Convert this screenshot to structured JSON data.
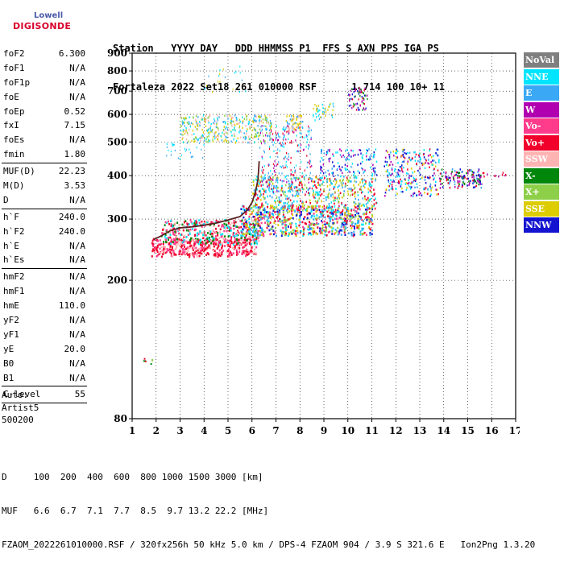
{
  "logo": {
    "line1": "Lowell",
    "line2": "DIGISONDE"
  },
  "header": {
    "labels": [
      "Station",
      "YYYY",
      "DAY",
      "DDD",
      "HHMMSS",
      "P1",
      "FFS",
      "S",
      "AXN",
      "PPS",
      "IGA",
      "PS"
    ],
    "values": [
      "Fortaleza",
      "2022",
      "Set18",
      "261",
      "010000",
      "RSF",
      "",
      "1",
      "714",
      "100",
      "10+",
      "11"
    ]
  },
  "params": {
    "groups": [
      [
        {
          "name": "foF2",
          "value": "6.300"
        },
        {
          "name": "foF1",
          "value": "N/A"
        },
        {
          "name": "foF1p",
          "value": "N/A"
        },
        {
          "name": "foE",
          "value": "N/A"
        },
        {
          "name": "foEp",
          "value": "0.52"
        },
        {
          "name": "fxI",
          "value": "7.15"
        },
        {
          "name": "foEs",
          "value": "N/A"
        },
        {
          "name": "fmin",
          "value": "1.80"
        }
      ],
      [
        {
          "name": "MUF(D)",
          "value": "22.23"
        },
        {
          "name": "M(D)",
          "value": "3.53"
        },
        {
          "name": "D",
          "value": "N/A"
        }
      ],
      [
        {
          "name": "h`F",
          "value": "240.0"
        },
        {
          "name": "h`F2",
          "value": "240.0"
        },
        {
          "name": "h`E",
          "value": "N/A"
        },
        {
          "name": "h`Es",
          "value": "N/A"
        }
      ],
      [
        {
          "name": "hmF2",
          "value": "N/A"
        },
        {
          "name": "hmF1",
          "value": "N/A"
        },
        {
          "name": "hmE",
          "value": "110.0"
        },
        {
          "name": "yF2",
          "value": "N/A"
        },
        {
          "name": "yF1",
          "value": "N/A"
        },
        {
          "name": "yE",
          "value": "20.0"
        },
        {
          "name": "B0",
          "value": "N/A"
        },
        {
          "name": "B1",
          "value": "N/A"
        }
      ],
      [
        {
          "name": "C-level",
          "value": "55"
        }
      ]
    ]
  },
  "auto": {
    "line1": "Auto:",
    "line2": "Artist5",
    "line3": "500200"
  },
  "legend": [
    {
      "label": "NoVal",
      "color": "#7f7f7f"
    },
    {
      "label": "NNE",
      "color": "#00e5ff"
    },
    {
      "label": "E",
      "color": "#3ba8f5"
    },
    {
      "label": "W",
      "color": "#b000b0"
    },
    {
      "label": "Vo-",
      "color": "#ff3c8c"
    },
    {
      "label": "Vo+",
      "color": "#f0002a"
    },
    {
      "label": "SSW",
      "color": "#ffb4b4"
    },
    {
      "label": "X-",
      "color": "#00860a"
    },
    {
      "label": "X+",
      "color": "#8ecf4a"
    },
    {
      "label": "SSE",
      "color": "#dccc00"
    },
    {
      "label": "NNW",
      "color": "#1414d0"
    }
  ],
  "chart_data": {
    "type": "scatter",
    "title": "",
    "xlabel": "",
    "ylabel": "",
    "xlim": [
      1,
      17
    ],
    "ylim": [
      80,
      900
    ],
    "y_scale": "log",
    "x_ticks": [
      1,
      2,
      3,
      4,
      5,
      6,
      7,
      8,
      9,
      10,
      11,
      12,
      13,
      14,
      15,
      16,
      17
    ],
    "y_ticks": [
      80,
      200,
      300,
      400,
      500,
      600,
      700,
      800,
      900
    ],
    "grid": true,
    "legend_position": "right",
    "trace": [
      {
        "x": 1.9,
        "y": 262
      },
      {
        "x": 2.2,
        "y": 268
      },
      {
        "x": 2.6,
        "y": 278
      },
      {
        "x": 3.0,
        "y": 283
      },
      {
        "x": 3.5,
        "y": 285
      },
      {
        "x": 4.0,
        "y": 288
      },
      {
        "x": 4.5,
        "y": 292
      },
      {
        "x": 5.0,
        "y": 298
      },
      {
        "x": 5.5,
        "y": 305
      },
      {
        "x": 5.8,
        "y": 318
      },
      {
        "x": 6.0,
        "y": 335
      },
      {
        "x": 6.15,
        "y": 360
      },
      {
        "x": 6.25,
        "y": 390
      },
      {
        "x": 6.3,
        "y": 440
      }
    ]
  },
  "footer": {
    "d_label": "D",
    "d_values": "100  200  400  600  800 1000 1500 3000 [km]",
    "muf_label": "MUF",
    "muf_values": "6.6  6.7  7.1  7.7  8.5  9.7 13.2 22.2 [MHz]",
    "file_info": "FZAOM_2022261010000.RSF / 320fx256h 50 kHz 5.0 km / DPS-4 FZAOM 904 / 3.9 S 321.6 E   Ion2Png 1.3.20"
  }
}
